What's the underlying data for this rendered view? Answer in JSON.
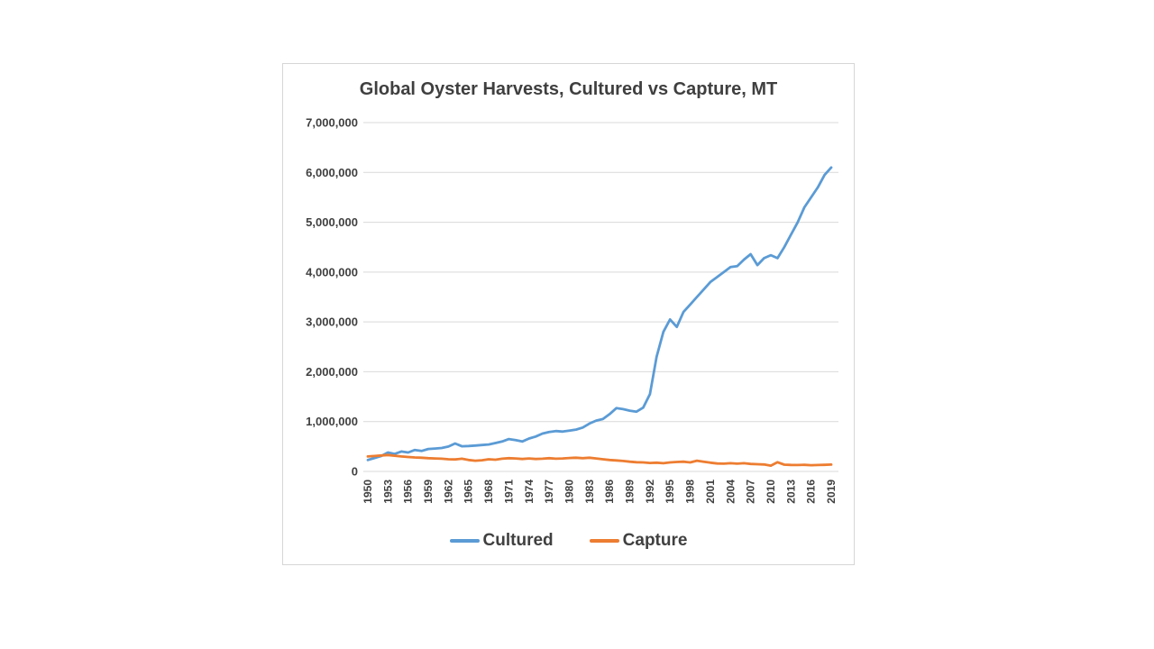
{
  "page": {
    "background": "#ffffff"
  },
  "chart": {
    "title": "Global Oyster Harvests, Cultured vs Capture, MT",
    "title_color": "#3f3f3f",
    "box_border_color": "#d6d6d6",
    "gridline_color": "#d9d9d9"
  },
  "legend": {
    "items": [
      {
        "label": "Cultured",
        "color": "#5B9BD5"
      },
      {
        "label": "Capture",
        "color": "#ED7D31"
      }
    ]
  },
  "chart_data": {
    "type": "line",
    "title": "Global Oyster Harvests, Cultured vs Capture, MT",
    "xlabel": "",
    "ylabel": "",
    "ylim": [
      0,
      7000000
    ],
    "grid": true,
    "legend_position": "bottom",
    "x": [
      1950,
      1951,
      1952,
      1953,
      1954,
      1955,
      1956,
      1957,
      1958,
      1959,
      1960,
      1961,
      1962,
      1963,
      1964,
      1965,
      1966,
      1967,
      1968,
      1969,
      1970,
      1971,
      1972,
      1973,
      1974,
      1975,
      1976,
      1977,
      1978,
      1979,
      1980,
      1981,
      1982,
      1983,
      1984,
      1985,
      1986,
      1987,
      1988,
      1989,
      1990,
      1991,
      1992,
      1993,
      1994,
      1995,
      1996,
      1997,
      1998,
      1999,
      2000,
      2001,
      2002,
      2003,
      2004,
      2005,
      2006,
      2007,
      2008,
      2009,
      2010,
      2011,
      2012,
      2013,
      2014,
      2015,
      2016,
      2017,
      2018,
      2019
    ],
    "x_tick_labels": [
      "1950",
      "1953",
      "1956",
      "1959",
      "1962",
      "1965",
      "1968",
      "1971",
      "1974",
      "1977",
      "1980",
      "1983",
      "1986",
      "1989",
      "1992",
      "1995",
      "1998",
      "2001",
      "2004",
      "2007",
      "2010",
      "2013",
      "2016",
      "2019"
    ],
    "y_ticks": [
      0,
      1000000,
      2000000,
      3000000,
      4000000,
      5000000,
      6000000,
      7000000
    ],
    "y_tick_labels": [
      "0",
      "1,000,000",
      "2,000,000",
      "3,000,000",
      "4,000,000",
      "5,000,000",
      "6,000,000",
      "7,000,000"
    ],
    "series": [
      {
        "name": "Cultured",
        "color": "#5B9BD5",
        "values": [
          230000,
          270000,
          310000,
          380000,
          350000,
          400000,
          380000,
          430000,
          410000,
          450000,
          460000,
          470000,
          500000,
          560000,
          505000,
          510000,
          520000,
          530000,
          540000,
          570000,
          600000,
          650000,
          630000,
          600000,
          660000,
          700000,
          760000,
          790000,
          810000,
          800000,
          820000,
          840000,
          880000,
          960000,
          1020000,
          1050000,
          1150000,
          1270000,
          1250000,
          1220000,
          1200000,
          1280000,
          1550000,
          2300000,
          2800000,
          3050000,
          2900000,
          3200000,
          3350000,
          3500000,
          3650000,
          3800000,
          3900000,
          4000000,
          4100000,
          4120000,
          4250000,
          4360000,
          4140000,
          4280000,
          4340000,
          4280000,
          4500000,
          4750000,
          5000000,
          5300000,
          5500000,
          5700000,
          5950000,
          6100000
        ]
      },
      {
        "name": "Capture",
        "color": "#ED7D31",
        "values": [
          300000,
          310000,
          320000,
          330000,
          315000,
          300000,
          290000,
          280000,
          275000,
          265000,
          260000,
          255000,
          245000,
          240000,
          255000,
          230000,
          215000,
          225000,
          245000,
          235000,
          255000,
          265000,
          260000,
          250000,
          260000,
          250000,
          255000,
          265000,
          255000,
          260000,
          270000,
          275000,
          265000,
          275000,
          260000,
          245000,
          230000,
          220000,
          210000,
          195000,
          185000,
          180000,
          170000,
          175000,
          165000,
          180000,
          190000,
          195000,
          180000,
          215000,
          195000,
          175000,
          160000,
          155000,
          165000,
          155000,
          165000,
          150000,
          145000,
          140000,
          115000,
          185000,
          135000,
          130000,
          128000,
          132000,
          124000,
          128000,
          132000,
          138000
        ]
      }
    ]
  }
}
